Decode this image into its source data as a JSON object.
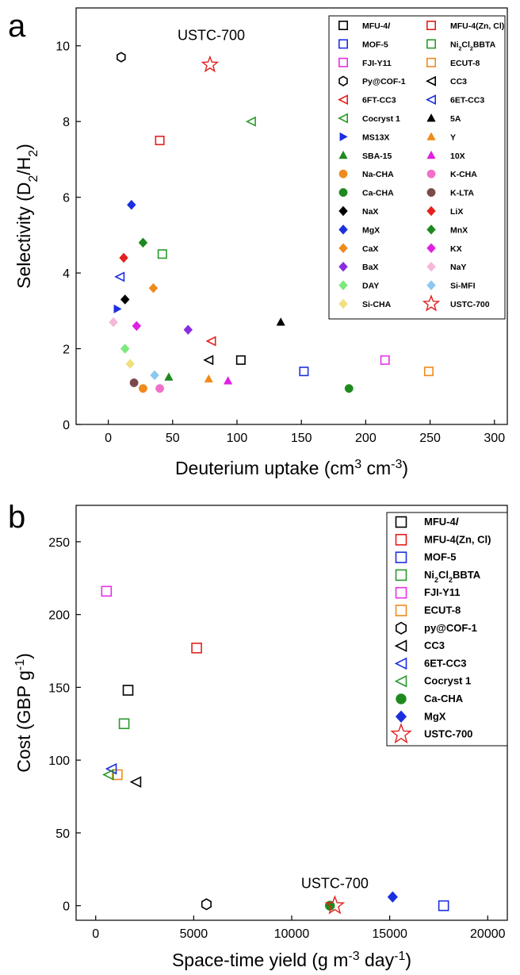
{
  "figure": {
    "panel_a_label": "a",
    "panel_b_label": "b"
  },
  "chart_data": [
    {
      "type": "scatter",
      "panel": "a",
      "title": "",
      "xlabel": "Deuterium uptake (cm3 cm-3)",
      "xlabel_parts": [
        "Deuterium uptake (cm",
        "3",
        " cm",
        "-3",
        ")"
      ],
      "ylabel": "Selectivity (D2/H2)",
      "ylabel_parts": [
        "Selectivity (D",
        "2",
        "/H",
        "2",
        ")"
      ],
      "xlim": [
        -25,
        310
      ],
      "ylim": [
        0,
        11
      ],
      "xticks": [
        0,
        50,
        100,
        150,
        200,
        250,
        300
      ],
      "yticks": [
        0,
        2,
        4,
        6,
        8,
        10
      ],
      "grid": false,
      "legend_position": "top-right",
      "legend_columns": 2,
      "annotations": [
        {
          "text": "USTC-700",
          "x": 80,
          "y": 10.15
        }
      ],
      "series": [
        {
          "name": "MFU-4l",
          "marker": "square-open",
          "color": "#000000",
          "points": [
            [
              103,
              1.7
            ]
          ]
        },
        {
          "name": "MFU-4(Zn, Cl)",
          "marker": "square-open",
          "color": "#e3211d",
          "points": [
            [
              40,
              7.5
            ]
          ]
        },
        {
          "name": "MOF-5",
          "marker": "square-open",
          "color": "#1c2fe0",
          "points": [
            [
              152,
              1.4
            ]
          ]
        },
        {
          "name": "Ni2Cl2BBTA",
          "marker": "square-open",
          "color": "#2a9a2a",
          "points": [
            [
              42,
              4.5
            ]
          ]
        },
        {
          "name": "FJI-Y11",
          "marker": "square-open",
          "color": "#e830e8",
          "points": [
            [
              215,
              1.7
            ]
          ]
        },
        {
          "name": "ECUT-8",
          "marker": "square-open",
          "color": "#f08a1c",
          "points": [
            [
              249,
              1.4
            ]
          ]
        },
        {
          "name": "Py@COF-1",
          "marker": "hexagon-open",
          "color": "#000000",
          "points": [
            [
              10,
              9.7
            ]
          ]
        },
        {
          "name": "CC3",
          "marker": "triangle-left-open",
          "color": "#000000",
          "points": [
            [
              78,
              1.7
            ]
          ]
        },
        {
          "name": "6FT-CC3",
          "marker": "triangle-left-open",
          "color": "#e3211d",
          "points": [
            [
              80,
              2.2
            ]
          ]
        },
        {
          "name": "6ET-CC3",
          "marker": "triangle-left-open",
          "color": "#1c2fe0",
          "points": [
            [
              9,
              3.9
            ]
          ]
        },
        {
          "name": "Cocryst 1",
          "marker": "triangle-left-open",
          "color": "#2a9a2a",
          "points": [
            [
              111,
              8.0
            ]
          ]
        },
        {
          "name": "5A",
          "marker": "triangle-up",
          "color": "#000000",
          "points": [
            [
              134,
              2.7
            ]
          ]
        },
        {
          "name": "MS13X",
          "marker": "triangle-right",
          "color": "#1c2fe0",
          "points": [
            [
              7,
              3.05
            ]
          ]
        },
        {
          "name": "Y",
          "marker": "triangle-up",
          "color": "#f08a1c",
          "points": [
            [
              78,
              1.2
            ]
          ]
        },
        {
          "name": "SBA-15",
          "marker": "triangle-up",
          "color": "#1e8a1e",
          "points": [
            [
              47,
              1.25
            ]
          ]
        },
        {
          "name": "10X",
          "marker": "triangle-up",
          "color": "#e020e0",
          "points": [
            [
              93,
              1.15
            ]
          ]
        },
        {
          "name": "Na-CHA",
          "marker": "circle",
          "color": "#f08a1c",
          "points": [
            [
              27,
              0.95
            ]
          ]
        },
        {
          "name": "K-CHA",
          "marker": "circle",
          "color": "#f070c8",
          "points": [
            [
              40,
              0.95
            ]
          ]
        },
        {
          "name": "Ca-CHA",
          "marker": "circle",
          "color": "#1e8a1e",
          "points": [
            [
              187,
              0.95
            ]
          ]
        },
        {
          "name": "K-LTA",
          "marker": "circle",
          "color": "#7b4a4a",
          "points": [
            [
              20,
              1.1
            ]
          ]
        },
        {
          "name": "NaX",
          "marker": "diamond",
          "color": "#000000",
          "points": [
            [
              13,
              3.3
            ]
          ]
        },
        {
          "name": "LiX",
          "marker": "diamond",
          "color": "#e3211d",
          "points": [
            [
              12,
              4.4
            ]
          ]
        },
        {
          "name": "MgX",
          "marker": "diamond",
          "color": "#1c2fe0",
          "points": [
            [
              18,
              5.8
            ]
          ]
        },
        {
          "name": "MnX",
          "marker": "diamond",
          "color": "#1e8a1e",
          "points": [
            [
              27,
              4.8
            ]
          ]
        },
        {
          "name": "CaX",
          "marker": "diamond",
          "color": "#f08a1c",
          "points": [
            [
              35,
              3.6
            ]
          ]
        },
        {
          "name": "KX",
          "marker": "diamond",
          "color": "#e020e0",
          "points": [
            [
              22,
              2.6
            ]
          ]
        },
        {
          "name": "BaX",
          "marker": "diamond",
          "color": "#8a2be2",
          "points": [
            [
              62,
              2.5
            ]
          ]
        },
        {
          "name": "NaY",
          "marker": "diamond",
          "color": "#f5b8d8",
          "points": [
            [
              4,
              2.7
            ]
          ]
        },
        {
          "name": "DAY",
          "marker": "diamond",
          "color": "#7de87d",
          "points": [
            [
              13,
              2.0
            ]
          ]
        },
        {
          "name": "Si-MFI",
          "marker": "diamond",
          "color": "#8cc8f0",
          "points": [
            [
              36,
              1.3
            ]
          ]
        },
        {
          "name": "Si-CHA",
          "marker": "diamond",
          "color": "#f0e080",
          "points": [
            [
              17,
              1.6
            ]
          ]
        },
        {
          "name": "USTC-700",
          "marker": "star-open",
          "color": "#e3211d",
          "points": [
            [
              79,
              9.5
            ]
          ]
        }
      ],
      "legend_labels": [
        {
          "key": "MFU-4l",
          "parts": [
            "MFU-4",
            "l"
          ]
        },
        {
          "key": "MFU-4(Zn, Cl)",
          "parts": [
            "MFU-4(Zn, Cl)"
          ]
        },
        {
          "key": "MOF-5",
          "parts": [
            "MOF-5"
          ]
        },
        {
          "key": "Ni2Cl2BBTA",
          "parts": [
            "Ni",
            "2",
            "Cl",
            "2",
            "BBTA"
          ]
        },
        {
          "key": "FJI-Y11",
          "parts": [
            "FJI-Y11"
          ]
        },
        {
          "key": "ECUT-8",
          "parts": [
            "ECUT-8"
          ]
        },
        {
          "key": "Py@COF-1",
          "parts": [
            "Py@COF-1"
          ]
        },
        {
          "key": "CC3",
          "parts": [
            "CC3"
          ]
        },
        {
          "key": "6FT-CC3",
          "parts": [
            "6FT-CC3"
          ]
        },
        {
          "key": "6ET-CC3",
          "parts": [
            "6ET-CC3"
          ]
        },
        {
          "key": "Cocryst 1",
          "parts": [
            "Cocryst 1"
          ]
        },
        {
          "key": "5A",
          "parts": [
            "5A"
          ]
        },
        {
          "key": "MS13X",
          "parts": [
            "MS13X"
          ]
        },
        {
          "key": "Y",
          "parts": [
            "Y"
          ]
        },
        {
          "key": "SBA-15",
          "parts": [
            "SBA-15"
          ]
        },
        {
          "key": "10X",
          "parts": [
            "10X"
          ]
        },
        {
          "key": "Na-CHA",
          "parts": [
            "Na-CHA"
          ]
        },
        {
          "key": "K-CHA",
          "parts": [
            "K-CHA"
          ]
        },
        {
          "key": "Ca-CHA",
          "parts": [
            "Ca-CHA"
          ]
        },
        {
          "key": "K-LTA",
          "parts": [
            "K-LTA"
          ]
        },
        {
          "key": "NaX",
          "parts": [
            "NaX"
          ]
        },
        {
          "key": "LiX",
          "parts": [
            "LiX"
          ]
        },
        {
          "key": "MgX",
          "parts": [
            "MgX"
          ]
        },
        {
          "key": "MnX",
          "parts": [
            "MnX"
          ]
        },
        {
          "key": "CaX",
          "parts": [
            "CaX"
          ]
        },
        {
          "key": "KX",
          "parts": [
            "KX"
          ]
        },
        {
          "key": "BaX",
          "parts": [
            "BaX"
          ]
        },
        {
          "key": "NaY",
          "parts": [
            "NaY"
          ]
        },
        {
          "key": "DAY",
          "parts": [
            "DAY"
          ]
        },
        {
          "key": "Si-MFI",
          "parts": [
            "Si-MFI"
          ]
        },
        {
          "key": "Si-CHA",
          "parts": [
            "Si-CHA"
          ]
        },
        {
          "key": "USTC-700",
          "parts": [
            "USTC-700"
          ]
        }
      ]
    },
    {
      "type": "scatter",
      "panel": "b",
      "title": "",
      "xlabel": "Space-time yield (g m-3 day-1)",
      "xlabel_parts": [
        "Space-time yield (g m",
        "-3",
        " day",
        "-1",
        ")"
      ],
      "ylabel": "Cost (GBP g-1)",
      "ylabel_parts": [
        "Cost (GBP g",
        "-1",
        ")"
      ],
      "xlim": [
        -1000,
        21000
      ],
      "ylim": [
        -10,
        275
      ],
      "xticks": [
        0,
        5000,
        10000,
        15000,
        20000
      ],
      "yticks": [
        0,
        50,
        100,
        150,
        200,
        250
      ],
      "grid": false,
      "legend_position": "top-right",
      "legend_columns": 1,
      "annotations": [
        {
          "text": "USTC-700",
          "x": 12200,
          "y": 12
        }
      ],
      "series": [
        {
          "name": "MFU-4l",
          "marker": "square-open",
          "color": "#000000",
          "points": [
            [
              1650,
              148
            ]
          ]
        },
        {
          "name": "MFU-4(Zn, Cl)",
          "marker": "square-open",
          "color": "#e3211d",
          "points": [
            [
              5150,
              177
            ]
          ]
        },
        {
          "name": "MOF-5",
          "marker": "square-open",
          "color": "#1c2fe0",
          "points": [
            [
              17750,
              0
            ]
          ]
        },
        {
          "name": "Ni2Cl2BBTA",
          "marker": "square-open",
          "color": "#2a9a2a",
          "points": [
            [
              1450,
              125
            ]
          ]
        },
        {
          "name": "FJI-Y11",
          "marker": "square-open",
          "color": "#e830e8",
          "points": [
            [
              550,
              216
            ]
          ]
        },
        {
          "name": "ECUT-8",
          "marker": "square-open",
          "color": "#f08a1c",
          "points": [
            [
              1100,
              90
            ]
          ]
        },
        {
          "name": "py@COF-1",
          "marker": "hexagon-open",
          "color": "#000000",
          "points": [
            [
              5650,
              1
            ]
          ]
        },
        {
          "name": "CC3",
          "marker": "triangle-left-open",
          "color": "#000000",
          "points": [
            [
              2050,
              85
            ]
          ]
        },
        {
          "name": "6ET-CC3",
          "marker": "triangle-left-open",
          "color": "#1c2fe0",
          "points": [
            [
              800,
              94
            ]
          ]
        },
        {
          "name": "Cocryst 1",
          "marker": "triangle-left-open",
          "color": "#2a9a2a",
          "points": [
            [
              650,
              90
            ]
          ]
        },
        {
          "name": "Ca-CHA",
          "marker": "circle",
          "color": "#1e8a1e",
          "points": [
            [
              11950,
              0
            ]
          ]
        },
        {
          "name": "MgX",
          "marker": "diamond",
          "color": "#1c2fe0",
          "points": [
            [
              15150,
              6
            ]
          ]
        },
        {
          "name": "USTC-700",
          "marker": "star-open",
          "color": "#e3211d",
          "points": [
            [
              12200,
              0
            ]
          ]
        }
      ],
      "legend_labels": [
        {
          "key": "MFU-4l",
          "parts": [
            "MFU-4",
            "l"
          ]
        },
        {
          "key": "MFU-4(Zn, Cl)",
          "parts": [
            "MFU-4(Zn, Cl)"
          ]
        },
        {
          "key": "MOF-5",
          "parts": [
            "MOF-5"
          ]
        },
        {
          "key": "Ni2Cl2BBTA",
          "parts": [
            "Ni",
            "2",
            "Cl",
            "2",
            "BBTA"
          ]
        },
        {
          "key": "FJI-Y11",
          "parts": [
            "FJI-Y11"
          ]
        },
        {
          "key": "ECUT-8",
          "parts": [
            "ECUT-8"
          ]
        },
        {
          "key": "py@COF-1",
          "parts": [
            "py@COF-1"
          ]
        },
        {
          "key": "CC3",
          "parts": [
            "CC3"
          ]
        },
        {
          "key": "6ET-CC3",
          "parts": [
            "6ET-CC3"
          ]
        },
        {
          "key": "Cocryst 1",
          "parts": [
            "Cocryst 1"
          ]
        },
        {
          "key": "Ca-CHA",
          "parts": [
            "Ca-CHA"
          ]
        },
        {
          "key": "MgX",
          "parts": [
            "MgX"
          ]
        },
        {
          "key": "USTC-700",
          "parts": [
            "USTC-700"
          ]
        }
      ]
    }
  ]
}
